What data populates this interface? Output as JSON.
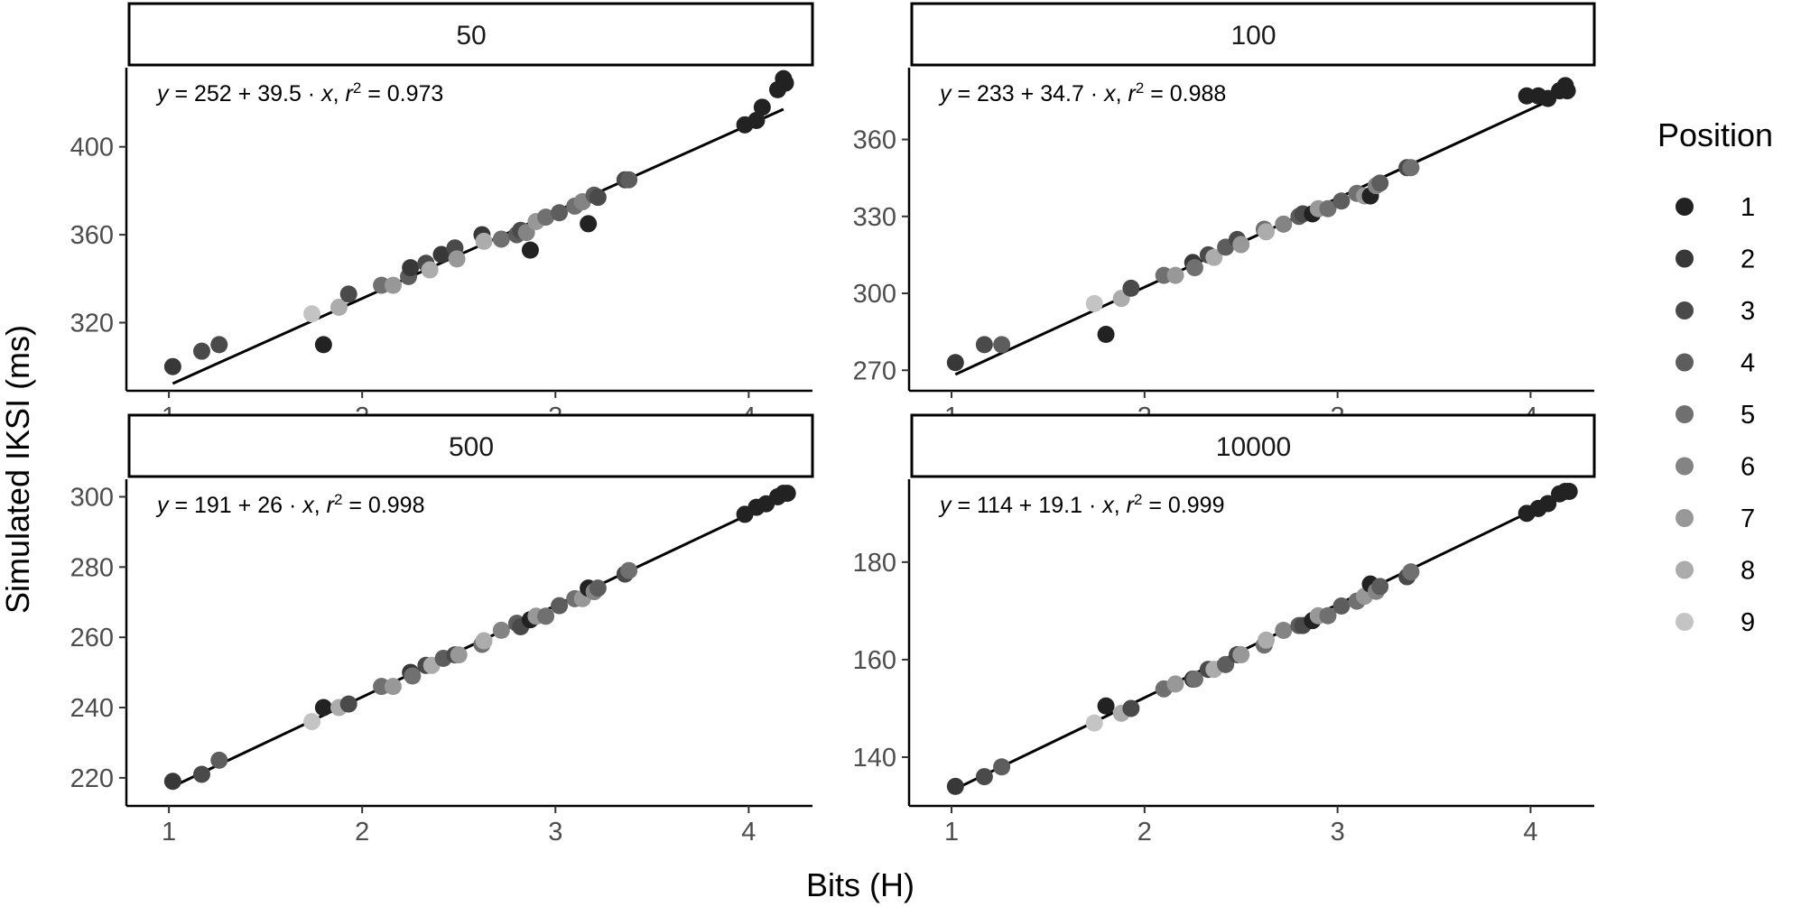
{
  "chart_data": {
    "type": "scatter",
    "xlabel": "Bits (H)",
    "ylabel": "Simulated IKSI (ms)",
    "legend": {
      "title": "Position",
      "placement": "right",
      "entries": [
        "1",
        "2",
        "3",
        "4",
        "5",
        "6",
        "7",
        "8",
        "9"
      ],
      "colors": [
        "#222222",
        "#383838",
        "#4a4a4a",
        "#5d5d5d",
        "#707070",
        "#848484",
        "#989898",
        "#acacac",
        "#c4c4c4"
      ]
    },
    "panels": [
      {
        "strip": "50",
        "equation": {
          "y": "y",
          "intercept": "252",
          "slope": "39.5",
          "x": "x",
          "r2_label": "r",
          "r2_sup": "2",
          "r2": "0.973"
        },
        "xlim": [
          0.78,
          4.33
        ],
        "ylim": [
          289,
          436
        ],
        "xticks": [
          1,
          2,
          3,
          4
        ],
        "yticks": [
          320,
          360,
          400
        ],
        "fit": {
          "intercept": 252,
          "slope": 39.5,
          "x_range": [
            1.02,
            4.18
          ]
        },
        "points": [
          {
            "x": 1.02,
            "y": 300,
            "pos": 2
          },
          {
            "x": 1.17,
            "y": 307,
            "pos": 3
          },
          {
            "x": 1.26,
            "y": 310,
            "pos": 3
          },
          {
            "x": 1.74,
            "y": 324,
            "pos": 9
          },
          {
            "x": 1.8,
            "y": 310,
            "pos": 1
          },
          {
            "x": 1.88,
            "y": 327,
            "pos": 8
          },
          {
            "x": 1.93,
            "y": 333,
            "pos": 3
          },
          {
            "x": 2.1,
            "y": 337,
            "pos": 5
          },
          {
            "x": 2.16,
            "y": 337,
            "pos": 7
          },
          {
            "x": 2.24,
            "y": 341,
            "pos": 4
          },
          {
            "x": 2.25,
            "y": 345,
            "pos": 2
          },
          {
            "x": 2.33,
            "y": 347,
            "pos": 3
          },
          {
            "x": 2.35,
            "y": 344,
            "pos": 8
          },
          {
            "x": 2.41,
            "y": 351,
            "pos": 2
          },
          {
            "x": 2.48,
            "y": 354,
            "pos": 3
          },
          {
            "x": 2.49,
            "y": 349,
            "pos": 7
          },
          {
            "x": 2.62,
            "y": 360,
            "pos": 2
          },
          {
            "x": 2.63,
            "y": 357,
            "pos": 8
          },
          {
            "x": 2.72,
            "y": 358,
            "pos": 5
          },
          {
            "x": 2.8,
            "y": 360,
            "pos": 4
          },
          {
            "x": 2.82,
            "y": 362,
            "pos": 3
          },
          {
            "x": 2.85,
            "y": 361,
            "pos": 6
          },
          {
            "x": 2.87,
            "y": 353,
            "pos": 1
          },
          {
            "x": 2.9,
            "y": 366,
            "pos": 7
          },
          {
            "x": 2.95,
            "y": 368,
            "pos": 5
          },
          {
            "x": 3.02,
            "y": 370,
            "pos": 4
          },
          {
            "x": 3.1,
            "y": 373,
            "pos": 5
          },
          {
            "x": 3.14,
            "y": 375,
            "pos": 6
          },
          {
            "x": 3.17,
            "y": 365,
            "pos": 1
          },
          {
            "x": 3.2,
            "y": 378,
            "pos": 4
          },
          {
            "x": 3.22,
            "y": 377,
            "pos": 3
          },
          {
            "x": 3.36,
            "y": 385,
            "pos": 3
          },
          {
            "x": 3.38,
            "y": 385,
            "pos": 4
          },
          {
            "x": 3.98,
            "y": 410,
            "pos": 1
          },
          {
            "x": 4.04,
            "y": 412,
            "pos": 1
          },
          {
            "x": 4.07,
            "y": 418,
            "pos": 1
          },
          {
            "x": 4.15,
            "y": 426,
            "pos": 1
          },
          {
            "x": 4.18,
            "y": 431,
            "pos": 1
          },
          {
            "x": 4.19,
            "y": 429,
            "pos": 1
          }
        ]
      },
      {
        "strip": "100",
        "equation": {
          "y": "y",
          "intercept": "233",
          "slope": "34.7",
          "x": "x",
          "r2_label": "r",
          "r2_sup": "2",
          "r2": "0.988"
        },
        "xlim": [
          0.78,
          4.33
        ],
        "ylim": [
          262,
          388
        ],
        "xticks": [
          1,
          2,
          3,
          4
        ],
        "yticks": [
          270,
          300,
          330,
          360
        ],
        "fit": {
          "intercept": 233,
          "slope": 34.7,
          "x_range": [
            1.02,
            4.18
          ]
        },
        "points": [
          {
            "x": 1.02,
            "y": 273,
            "pos": 2
          },
          {
            "x": 1.17,
            "y": 280,
            "pos": 3
          },
          {
            "x": 1.26,
            "y": 280,
            "pos": 4
          },
          {
            "x": 1.74,
            "y": 296,
            "pos": 9
          },
          {
            "x": 1.8,
            "y": 284,
            "pos": 1
          },
          {
            "x": 1.88,
            "y": 298,
            "pos": 8
          },
          {
            "x": 1.93,
            "y": 302,
            "pos": 3
          },
          {
            "x": 2.1,
            "y": 307,
            "pos": 5
          },
          {
            "x": 2.16,
            "y": 307,
            "pos": 7
          },
          {
            "x": 2.25,
            "y": 312,
            "pos": 2
          },
          {
            "x": 2.26,
            "y": 310,
            "pos": 5
          },
          {
            "x": 2.33,
            "y": 315,
            "pos": 3
          },
          {
            "x": 2.36,
            "y": 314,
            "pos": 8
          },
          {
            "x": 2.42,
            "y": 318,
            "pos": 4
          },
          {
            "x": 2.48,
            "y": 321,
            "pos": 3
          },
          {
            "x": 2.5,
            "y": 319,
            "pos": 7
          },
          {
            "x": 2.62,
            "y": 325,
            "pos": 5
          },
          {
            "x": 2.63,
            "y": 324,
            "pos": 8
          },
          {
            "x": 2.72,
            "y": 327,
            "pos": 6
          },
          {
            "x": 2.8,
            "y": 330,
            "pos": 4
          },
          {
            "x": 2.82,
            "y": 331,
            "pos": 3
          },
          {
            "x": 2.87,
            "y": 331,
            "pos": 1
          },
          {
            "x": 2.9,
            "y": 333,
            "pos": 7
          },
          {
            "x": 2.95,
            "y": 333,
            "pos": 5
          },
          {
            "x": 3.02,
            "y": 336,
            "pos": 4
          },
          {
            "x": 3.1,
            "y": 339,
            "pos": 5
          },
          {
            "x": 3.14,
            "y": 338,
            "pos": 7
          },
          {
            "x": 3.17,
            "y": 338,
            "pos": 1
          },
          {
            "x": 3.2,
            "y": 342,
            "pos": 6
          },
          {
            "x": 3.22,
            "y": 343,
            "pos": 4
          },
          {
            "x": 3.36,
            "y": 349,
            "pos": 3
          },
          {
            "x": 3.38,
            "y": 349,
            "pos": 5
          },
          {
            "x": 3.98,
            "y": 377,
            "pos": 1
          },
          {
            "x": 4.04,
            "y": 377,
            "pos": 1
          },
          {
            "x": 4.09,
            "y": 376,
            "pos": 1
          },
          {
            "x": 4.15,
            "y": 379,
            "pos": 1
          },
          {
            "x": 4.18,
            "y": 381,
            "pos": 1
          },
          {
            "x": 4.19,
            "y": 379,
            "pos": 1
          }
        ]
      },
      {
        "strip": "500",
        "equation": {
          "y": "y",
          "intercept": "191",
          "slope": "26",
          "x": "x",
          "r2_label": "r",
          "r2_sup": "2",
          "r2": "0.998"
        },
        "xlim": [
          0.78,
          4.33
        ],
        "ylim": [
          212,
          305
        ],
        "xticks": [
          1,
          2,
          3,
          4
        ],
        "yticks": [
          220,
          240,
          260,
          280,
          300
        ],
        "fit": {
          "intercept": 191,
          "slope": 26,
          "x_range": [
            1.02,
            4.18
          ]
        },
        "points": [
          {
            "x": 1.02,
            "y": 219,
            "pos": 2
          },
          {
            "x": 1.17,
            "y": 221,
            "pos": 3
          },
          {
            "x": 1.26,
            "y": 225,
            "pos": 4
          },
          {
            "x": 1.74,
            "y": 236,
            "pos": 9
          },
          {
            "x": 1.8,
            "y": 240,
            "pos": 1
          },
          {
            "x": 1.88,
            "y": 240,
            "pos": 8
          },
          {
            "x": 1.93,
            "y": 241,
            "pos": 3
          },
          {
            "x": 2.1,
            "y": 246,
            "pos": 5
          },
          {
            "x": 2.16,
            "y": 246,
            "pos": 7
          },
          {
            "x": 2.25,
            "y": 250,
            "pos": 2
          },
          {
            "x": 2.26,
            "y": 249,
            "pos": 5
          },
          {
            "x": 2.33,
            "y": 252,
            "pos": 3
          },
          {
            "x": 2.36,
            "y": 252,
            "pos": 8
          },
          {
            "x": 2.42,
            "y": 254,
            "pos": 4
          },
          {
            "x": 2.48,
            "y": 255,
            "pos": 3
          },
          {
            "x": 2.5,
            "y": 255,
            "pos": 7
          },
          {
            "x": 2.62,
            "y": 258,
            "pos": 5
          },
          {
            "x": 2.63,
            "y": 259,
            "pos": 8
          },
          {
            "x": 2.72,
            "y": 262,
            "pos": 6
          },
          {
            "x": 2.8,
            "y": 264,
            "pos": 4
          },
          {
            "x": 2.82,
            "y": 263,
            "pos": 3
          },
          {
            "x": 2.87,
            "y": 265,
            "pos": 1
          },
          {
            "x": 2.9,
            "y": 266,
            "pos": 7
          },
          {
            "x": 2.95,
            "y": 266,
            "pos": 5
          },
          {
            "x": 3.02,
            "y": 269,
            "pos": 4
          },
          {
            "x": 3.1,
            "y": 271,
            "pos": 5
          },
          {
            "x": 3.14,
            "y": 271,
            "pos": 7
          },
          {
            "x": 3.17,
            "y": 274,
            "pos": 1
          },
          {
            "x": 3.2,
            "y": 273,
            "pos": 6
          },
          {
            "x": 3.22,
            "y": 274,
            "pos": 4
          },
          {
            "x": 3.36,
            "y": 278,
            "pos": 3
          },
          {
            "x": 3.38,
            "y": 279,
            "pos": 5
          },
          {
            "x": 3.98,
            "y": 295,
            "pos": 1
          },
          {
            "x": 4.04,
            "y": 297,
            "pos": 1
          },
          {
            "x": 4.09,
            "y": 298,
            "pos": 1
          },
          {
            "x": 4.15,
            "y": 300,
            "pos": 1
          },
          {
            "x": 4.18,
            "y": 301,
            "pos": 1
          },
          {
            "x": 4.2,
            "y": 301,
            "pos": 1
          }
        ]
      },
      {
        "strip": "10000",
        "equation": {
          "y": "y",
          "intercept": "114",
          "slope": "19.1",
          "x": "x",
          "r2_label": "r",
          "r2_sup": "2",
          "r2": "0.999"
        },
        "xlim": [
          0.78,
          4.33
        ],
        "ylim": [
          130,
          197
        ],
        "xticks": [
          1,
          2,
          3,
          4
        ],
        "yticks": [
          140,
          160,
          180
        ],
        "fit": {
          "intercept": 114,
          "slope": 19.1,
          "x_range": [
            1.02,
            4.18
          ]
        },
        "points": [
          {
            "x": 1.02,
            "y": 134,
            "pos": 2
          },
          {
            "x": 1.17,
            "y": 136,
            "pos": 3
          },
          {
            "x": 1.26,
            "y": 138,
            "pos": 4
          },
          {
            "x": 1.74,
            "y": 147,
            "pos": 9
          },
          {
            "x": 1.8,
            "y": 150.5,
            "pos": 1
          },
          {
            "x": 1.88,
            "y": 149,
            "pos": 8
          },
          {
            "x": 1.93,
            "y": 150,
            "pos": 3
          },
          {
            "x": 2.1,
            "y": 154,
            "pos": 5
          },
          {
            "x": 2.16,
            "y": 155,
            "pos": 7
          },
          {
            "x": 2.25,
            "y": 156,
            "pos": 2
          },
          {
            "x": 2.26,
            "y": 156,
            "pos": 5
          },
          {
            "x": 2.33,
            "y": 158,
            "pos": 3
          },
          {
            "x": 2.36,
            "y": 158,
            "pos": 8
          },
          {
            "x": 2.42,
            "y": 159,
            "pos": 4
          },
          {
            "x": 2.48,
            "y": 161,
            "pos": 3
          },
          {
            "x": 2.5,
            "y": 161,
            "pos": 7
          },
          {
            "x": 2.62,
            "y": 163,
            "pos": 5
          },
          {
            "x": 2.63,
            "y": 164,
            "pos": 8
          },
          {
            "x": 2.72,
            "y": 166,
            "pos": 6
          },
          {
            "x": 2.8,
            "y": 167,
            "pos": 4
          },
          {
            "x": 2.82,
            "y": 167,
            "pos": 3
          },
          {
            "x": 2.87,
            "y": 168,
            "pos": 1
          },
          {
            "x": 2.9,
            "y": 169,
            "pos": 7
          },
          {
            "x": 2.95,
            "y": 169,
            "pos": 5
          },
          {
            "x": 3.02,
            "y": 171,
            "pos": 4
          },
          {
            "x": 3.1,
            "y": 172,
            "pos": 5
          },
          {
            "x": 3.14,
            "y": 173,
            "pos": 7
          },
          {
            "x": 3.17,
            "y": 175.5,
            "pos": 1
          },
          {
            "x": 3.2,
            "y": 174,
            "pos": 6
          },
          {
            "x": 3.22,
            "y": 175,
            "pos": 4
          },
          {
            "x": 3.36,
            "y": 177,
            "pos": 3
          },
          {
            "x": 3.38,
            "y": 178,
            "pos": 5
          },
          {
            "x": 3.98,
            "y": 190,
            "pos": 1
          },
          {
            "x": 4.04,
            "y": 191,
            "pos": 1
          },
          {
            "x": 4.09,
            "y": 192,
            "pos": 1
          },
          {
            "x": 4.15,
            "y": 194,
            "pos": 1
          },
          {
            "x": 4.18,
            "y": 194.5,
            "pos": 1
          },
          {
            "x": 4.2,
            "y": 194.5,
            "pos": 1
          }
        ]
      }
    ]
  }
}
